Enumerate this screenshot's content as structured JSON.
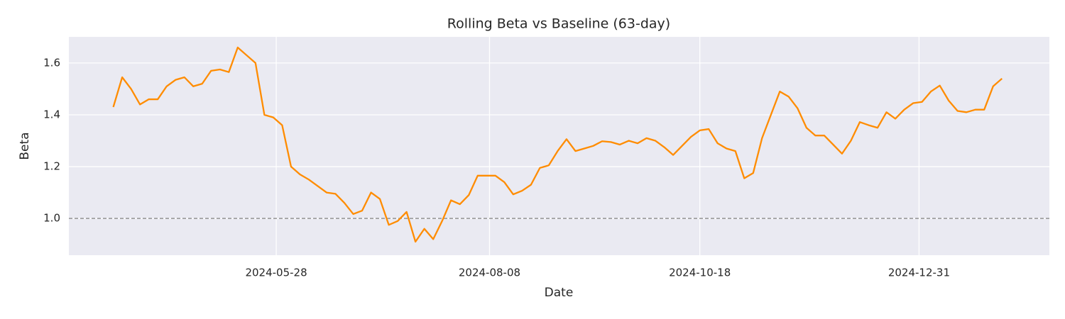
{
  "chart_data": {
    "type": "line",
    "title": "Rolling Beta vs Baseline (63-day)",
    "x_label": "Date",
    "y_label": "Beta",
    "x": [
      "2024-04-03",
      "2024-04-06",
      "2024-04-09",
      "2024-04-12",
      "2024-04-15",
      "2024-04-18",
      "2024-04-21",
      "2024-04-24",
      "2024-04-27",
      "2024-04-30",
      "2024-05-03",
      "2024-05-06",
      "2024-05-09",
      "2024-05-12",
      "2024-05-15",
      "2024-05-18",
      "2024-05-21",
      "2024-05-24",
      "2024-05-27",
      "2024-05-30",
      "2024-06-02",
      "2024-06-05",
      "2024-06-08",
      "2024-06-11",
      "2024-06-14",
      "2024-06-17",
      "2024-06-20",
      "2024-06-23",
      "2024-06-26",
      "2024-06-29",
      "2024-07-02",
      "2024-07-05",
      "2024-07-08",
      "2024-07-11",
      "2024-07-14",
      "2024-07-17",
      "2024-07-20",
      "2024-07-23",
      "2024-07-26",
      "2024-07-29",
      "2024-08-01",
      "2024-08-04",
      "2024-08-07",
      "2024-08-10",
      "2024-08-13",
      "2024-08-16",
      "2024-08-19",
      "2024-08-22",
      "2024-08-25",
      "2024-08-28",
      "2024-08-31",
      "2024-09-03",
      "2024-09-06",
      "2024-09-09",
      "2024-09-12",
      "2024-09-15",
      "2024-09-18",
      "2024-09-21",
      "2024-09-24",
      "2024-09-27",
      "2024-09-30",
      "2024-10-03",
      "2024-10-06",
      "2024-10-09",
      "2024-10-12",
      "2024-10-15",
      "2024-10-18",
      "2024-10-21",
      "2024-10-24",
      "2024-10-27",
      "2024-10-30",
      "2024-11-02",
      "2024-11-05",
      "2024-11-08",
      "2024-11-11",
      "2024-11-14",
      "2024-11-17",
      "2024-11-20",
      "2024-11-23",
      "2024-11-26",
      "2024-11-29",
      "2024-12-02",
      "2024-12-05",
      "2024-12-08",
      "2024-12-11",
      "2024-12-14",
      "2024-12-17",
      "2024-12-20",
      "2024-12-23",
      "2024-12-26",
      "2024-12-29",
      "2025-01-01",
      "2025-01-04",
      "2025-01-07",
      "2025-01-10",
      "2025-01-13",
      "2025-01-16",
      "2025-01-19",
      "2025-01-22",
      "2025-01-25",
      "2025-01-28"
    ],
    "values": [
      1.43,
      1.545,
      1.5,
      1.44,
      1.46,
      1.46,
      1.51,
      1.535,
      1.545,
      1.51,
      1.52,
      1.57,
      1.575,
      1.565,
      1.66,
      1.63,
      1.6,
      1.4,
      1.39,
      1.36,
      1.2,
      1.17,
      1.15,
      1.125,
      1.1,
      1.095,
      1.06,
      1.017,
      1.03,
      1.1,
      1.075,
      0.975,
      0.99,
      1.025,
      0.91,
      0.96,
      0.92,
      0.99,
      1.07,
      1.055,
      1.09,
      1.165,
      1.165,
      1.165,
      1.14,
      1.093,
      1.107,
      1.13,
      1.195,
      1.205,
      1.26,
      1.306,
      1.26,
      1.27,
      1.28,
      1.298,
      1.295,
      1.285,
      1.3,
      1.29,
      1.31,
      1.3,
      1.275,
      1.245,
      1.28,
      1.315,
      1.34,
      1.345,
      1.29,
      1.27,
      1.26,
      1.155,
      1.175,
      1.31,
      1.4,
      1.49,
      1.47,
      1.425,
      1.35,
      1.32,
      1.32,
      1.285,
      1.25,
      1.3,
      1.372,
      1.36,
      1.35,
      1.41,
      1.385,
      1.42,
      1.445,
      1.45,
      1.49,
      1.513,
      1.455,
      1.415,
      1.41,
      1.42,
      1.42,
      1.51,
      1.54
    ],
    "color": "#ff8c00",
    "xlim": [
      "2024-03-19",
      "2025-02-13"
    ],
    "xticks": [
      "2024-05-28",
      "2024-08-08",
      "2024-10-18",
      "2024-12-31"
    ],
    "ylim": [
      0.858,
      1.701
    ],
    "yticks": [
      {
        "value": 1,
        "label": "1.0"
      },
      1.2,
      1.4,
      1.6
    ],
    "grid": true,
    "hline": 1,
    "hline_color": "#808080"
  }
}
